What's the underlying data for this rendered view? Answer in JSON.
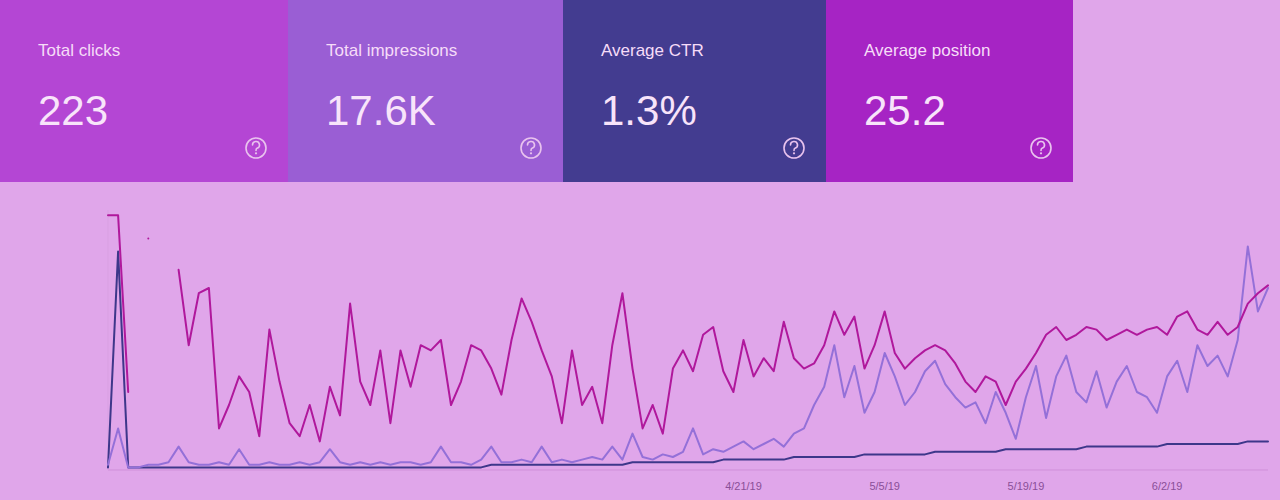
{
  "cards": [
    {
      "label": "Total clicks",
      "value": "223",
      "color": "#b446d4"
    },
    {
      "label": "Total impressions",
      "value": "17.6K",
      "color": "#9a5ed4"
    },
    {
      "label": "Average CTR",
      "value": "1.3%",
      "color": "#433c90"
    },
    {
      "label": "Average position",
      "value": "25.2",
      "color": "#a624c4"
    }
  ],
  "chart_data": {
    "type": "line",
    "categories": [
      null,
      null,
      null,
      null,
      null,
      null,
      null,
      null,
      null,
      null,
      null,
      null,
      null,
      null,
      null,
      null,
      null,
      null,
      null,
      null,
      null,
      null,
      null,
      null,
      null,
      null,
      null,
      null,
      null,
      null,
      null,
      null,
      null,
      null,
      null,
      null,
      null,
      null,
      null,
      null,
      null,
      null,
      null,
      null,
      null,
      null,
      null,
      null,
      null,
      null,
      null,
      null,
      null,
      null,
      null,
      null,
      null,
      null,
      null,
      null,
      null,
      null,
      null,
      "4/21/19",
      null,
      null,
      null,
      null,
      null,
      null,
      null,
      null,
      null,
      null,
      null,
      null,
      null,
      "5/5/19",
      null,
      null,
      null,
      null,
      null,
      null,
      null,
      null,
      null,
      null,
      null,
      null,
      null,
      "5/19/19",
      null,
      null,
      null,
      null,
      null,
      null,
      null,
      null,
      null,
      null,
      null,
      null,
      null,
      "6/2/19",
      null,
      null,
      null,
      null,
      null,
      null,
      null,
      null,
      null,
      null
    ],
    "series": [
      {
        "color": "#3d378a",
        "values": [
          1,
          84,
          1,
          1,
          1,
          1,
          1,
          1,
          1,
          1,
          1,
          1,
          1,
          1,
          1,
          1,
          1,
          1,
          1,
          1,
          1,
          1,
          1,
          1,
          1,
          1,
          1,
          1,
          1,
          1,
          1,
          1,
          1,
          1,
          1,
          1,
          1,
          1,
          2,
          2,
          2,
          2,
          2,
          2,
          2,
          2,
          2,
          2,
          2,
          2,
          2,
          2,
          3,
          3,
          3,
          3,
          3,
          3,
          3,
          3,
          3,
          4,
          4,
          4,
          4,
          4,
          4,
          4,
          5,
          5,
          5,
          5,
          5,
          5,
          5,
          6,
          6,
          6,
          6,
          6,
          6,
          6,
          7,
          7,
          7,
          7,
          7,
          7,
          7,
          8,
          8,
          8,
          8,
          8,
          8,
          8,
          8,
          9,
          9,
          9,
          9,
          9,
          9,
          9,
          9,
          10,
          10,
          10,
          10,
          10,
          10,
          10,
          10,
          11,
          11,
          11
        ]
      },
      {
        "color": "#9470d8",
        "values": [
          2,
          16,
          1,
          1,
          2,
          2,
          3,
          9,
          3,
          2,
          2,
          3,
          2,
          8,
          2,
          2,
          3,
          2,
          2,
          3,
          2,
          3,
          8,
          3,
          2,
          3,
          2,
          3,
          2,
          3,
          3,
          2,
          3,
          9,
          3,
          3,
          2,
          4,
          9,
          3,
          3,
          4,
          3,
          9,
          3,
          4,
          3,
          4,
          5,
          4,
          9,
          4,
          14,
          5,
          4,
          6,
          5,
          7,
          16,
          6,
          8,
          7,
          9,
          11,
          8,
          10,
          12,
          9,
          14,
          16,
          25,
          32,
          48,
          28,
          40,
          22,
          30,
          45,
          36,
          25,
          30,
          38,
          42,
          33,
          28,
          24,
          26,
          18,
          30,
          22,
          12,
          28,
          40,
          20,
          36,
          44,
          30,
          26,
          38,
          24,
          34,
          40,
          30,
          28,
          22,
          36,
          42,
          30,
          48,
          40,
          44,
          36,
          50,
          86,
          61,
          70
        ]
      },
      {
        "color": "#b0189c",
        "values": [
          98,
          98,
          30,
          null,
          89,
          null,
          null,
          77,
          48,
          68,
          70,
          16,
          25,
          36,
          30,
          13,
          54,
          34,
          18,
          13,
          25,
          11,
          32,
          21,
          64,
          34,
          25,
          46,
          18,
          46,
          32,
          48,
          46,
          50,
          25,
          34,
          48,
          46,
          39,
          29,
          50,
          66,
          57,
          46,
          36,
          18,
          46,
          25,
          32,
          18,
          48,
          68,
          39,
          16,
          25,
          14,
          39,
          46,
          38,
          52,
          55,
          38,
          30,
          50,
          36,
          43,
          38,
          57,
          43,
          39,
          41,
          48,
          61,
          52,
          59,
          39,
          48,
          61,
          45,
          39,
          43,
          46,
          48,
          46,
          41,
          34,
          30,
          36,
          34,
          25,
          34,
          39,
          45,
          52,
          55,
          50,
          52,
          55,
          54,
          50,
          52,
          54,
          52,
          54,
          55,
          52,
          59,
          61,
          54,
          52,
          57,
          52,
          55,
          64,
          68,
          71
        ]
      }
    ],
    "ylim": [
      0,
      100
    ],
    "grid": false,
    "tick_labels": "x"
  }
}
